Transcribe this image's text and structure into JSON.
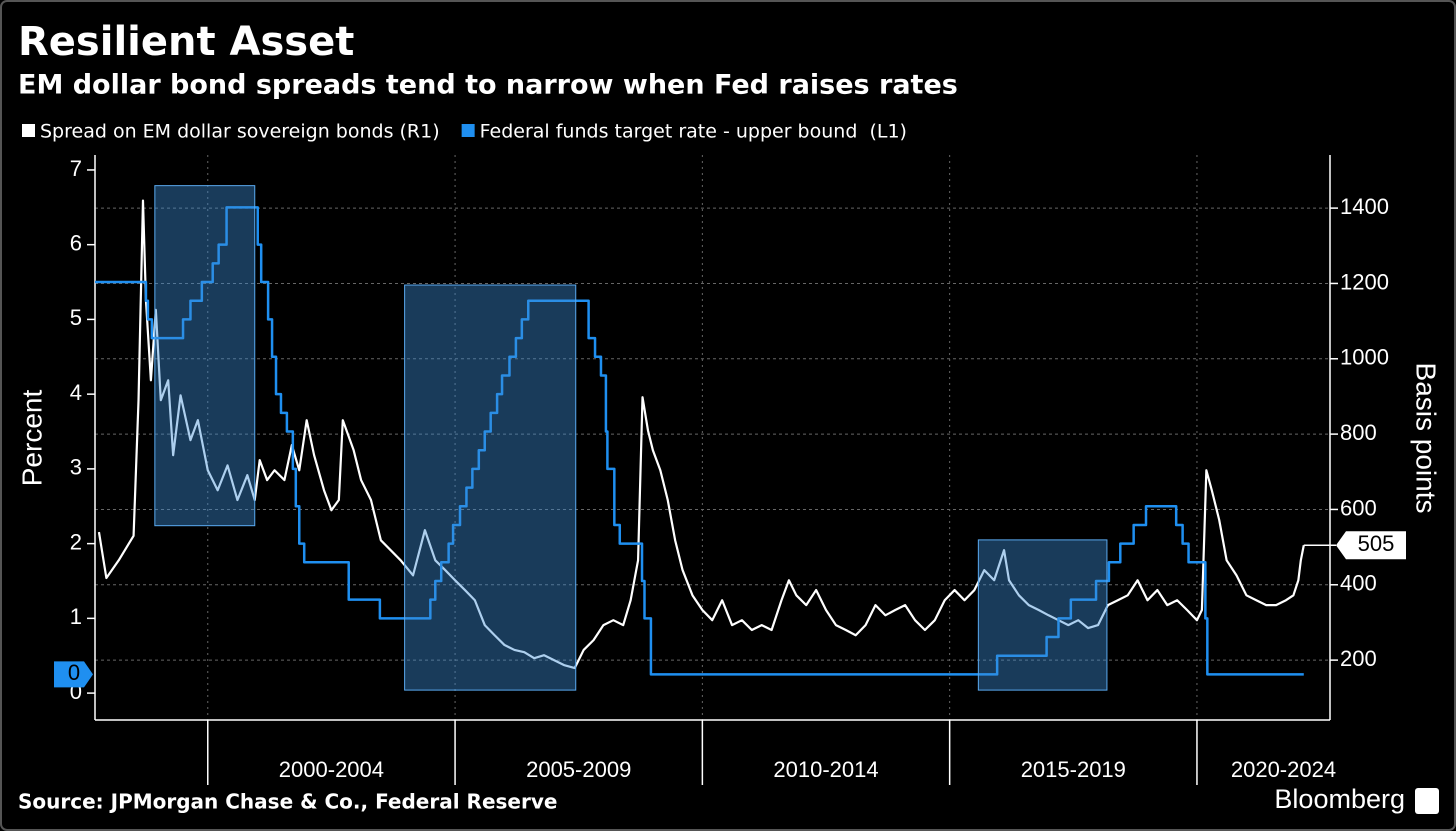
{
  "chart_data": {
    "type": "line",
    "title": "Resilient Asset",
    "subtitle": "EM dollar bond spreads tend to narrow when Fed raises rates",
    "ylabel": "Percent",
    "y2label": "Basis points",
    "source": "Source: JPMorgan Chase & Co., Federal Reserve",
    "brand": "Bloomberg",
    "xlim": [
      1997.72,
      2022.69
    ],
    "xticks": [
      {
        "value": 2000,
        "label": "2000-2004"
      },
      {
        "value": 2005,
        "label": "2005-2009"
      },
      {
        "value": 2010,
        "label": "2010-2014"
      },
      {
        "value": 2015,
        "label": "2015-2019"
      },
      {
        "value": 2020,
        "label": "2020-2024"
      }
    ],
    "ylim": [
      -0.36,
      7.2
    ],
    "yticks": [
      0,
      1,
      2,
      3,
      4,
      5,
      6,
      7
    ],
    "y2lim": [
      41,
      1541
    ],
    "y2ticks": [
      200,
      400,
      600,
      800,
      1000,
      1200,
      1400
    ],
    "grid": true,
    "highlights": [
      {
        "x": [
          1998.93,
          2000.95
        ],
        "y": [
          2.24,
          6.79
        ]
      },
      {
        "x": [
          2003.98,
          2007.44
        ],
        "y": [
          0.04,
          5.46
        ]
      },
      {
        "x": [
          2015.58,
          2018.18
        ],
        "y": [
          0.04,
          2.05
        ]
      }
    ],
    "series": [
      {
        "name": "Spread on EM dollar sovereign bonds (R1)",
        "color": "#ffffff",
        "axis": "y2",
        "x": [
          1997.8,
          1997.95,
          1998.2,
          1998.5,
          1998.6,
          1998.69,
          1998.75,
          1998.85,
          1998.95,
          1999.05,
          1999.2,
          1999.3,
          1999.45,
          1999.65,
          1999.8,
          2000.0,
          2000.2,
          2000.4,
          2000.6,
          2000.8,
          2000.95,
          2001.05,
          2001.2,
          2001.35,
          2001.55,
          2001.7,
          2001.85,
          2002.0,
          2002.15,
          2002.35,
          2002.5,
          2002.65,
          2002.73,
          2002.95,
          2003.1,
          2003.3,
          2003.5,
          2003.9,
          2004.15,
          2004.39,
          2004.6,
          2004.8,
          2005.0,
          2005.2,
          2005.4,
          2005.6,
          2005.8,
          2006.0,
          2006.2,
          2006.4,
          2006.6,
          2006.8,
          2007.0,
          2007.2,
          2007.42,
          2007.6,
          2007.8,
          2008.0,
          2008.2,
          2008.4,
          2008.55,
          2008.7,
          2008.79,
          2008.9,
          2009.0,
          2009.15,
          2009.3,
          2009.45,
          2009.6,
          2009.8,
          2010.0,
          2010.2,
          2010.4,
          2010.6,
          2010.8,
          2011.0,
          2011.2,
          2011.4,
          2011.6,
          2011.75,
          2011.9,
          2012.1,
          2012.3,
          2012.5,
          2012.7,
          2012.9,
          2013.1,
          2013.3,
          2013.5,
          2013.7,
          2013.9,
          2014.1,
          2014.3,
          2014.5,
          2014.7,
          2014.9,
          2015.1,
          2015.3,
          2015.5,
          2015.7,
          2015.9,
          2016.1,
          2016.2,
          2016.4,
          2016.6,
          2016.8,
          2017.0,
          2017.2,
          2017.4,
          2017.6,
          2017.8,
          2018.0,
          2018.2,
          2018.4,
          2018.6,
          2018.8,
          2019.0,
          2019.2,
          2019.4,
          2019.6,
          2019.8,
          2020.0,
          2020.1,
          2020.19,
          2020.3,
          2020.45,
          2020.6,
          2020.8,
          2021.0,
          2021.2,
          2021.4,
          2021.6,
          2021.8,
          2021.95,
          2022.05,
          2022.1,
          2022.16
        ],
        "values": [
          540,
          418,
          465,
          530,
          890,
          1420,
          1155,
          943,
          1130,
          890,
          943,
          744,
          903,
          784,
          837,
          704,
          651,
          717,
          625,
          691,
          625,
          731,
          678,
          704,
          678,
          771,
          704,
          837,
          744,
          651,
          598,
          625,
          837,
          757,
          678,
          625,
          518,
          465,
          425,
          545,
          465,
          439,
          412,
          386,
          359,
          293,
          266,
          240,
          227,
          221,
          205,
          213,
          200,
          187,
          179,
          227,
          253,
          293,
          306,
          293,
          359,
          465,
          898,
          810,
          757,
          704,
          625,
          518,
          439,
          372,
          333,
          306,
          359,
          293,
          306,
          280,
          293,
          280,
          359,
          412,
          372,
          346,
          386,
          333,
          293,
          280,
          266,
          293,
          346,
          319,
          333,
          346,
          306,
          280,
          306,
          359,
          386,
          359,
          386,
          439,
          412,
          492,
          412,
          372,
          346,
          333,
          319,
          306,
          293,
          306,
          285,
          293,
          346,
          359,
          372,
          412,
          359,
          386,
          346,
          359,
          333,
          306,
          333,
          704,
          651,
          572,
          465,
          425,
          372,
          359,
          346,
          346,
          359,
          372,
          412,
          465,
          505
        ]
      },
      {
        "name": "Federal funds target rate - upper bound  (L1)",
        "color": "#1f8ff0",
        "axis": "y",
        "step": true,
        "last_value_label": "0",
        "x": [
          1997.72,
          1998.75,
          1998.79,
          1998.87,
          1999.5,
          1999.65,
          1999.88,
          2000.1,
          2000.22,
          2000.38,
          2001.01,
          2001.08,
          2001.22,
          2001.3,
          2001.38,
          2001.48,
          2001.6,
          2001.72,
          2001.78,
          2001.85,
          2001.95,
          2002.85,
          2003.48,
          2004.5,
          2004.6,
          2004.72,
          2004.87,
          2004.96,
          2005.1,
          2005.23,
          2005.35,
          2005.48,
          2005.6,
          2005.72,
          2005.85,
          2005.95,
          2006.1,
          2006.23,
          2006.35,
          2006.48,
          2007.7,
          2007.83,
          2007.95,
          2008.05,
          2008.08,
          2008.22,
          2008.33,
          2008.78,
          2008.83,
          2008.96,
          2015.96,
          2016.96,
          2017.2,
          2017.45,
          2017.96,
          2018.22,
          2018.45,
          2018.72,
          2018.97,
          2019.58,
          2019.71,
          2019.83,
          2020.17,
          2020.21,
          2022.16
        ],
        "values": [
          5.5,
          5.25,
          5.0,
          4.75,
          5.0,
          5.25,
          5.5,
          5.75,
          6.0,
          6.5,
          6.0,
          5.5,
          5.0,
          4.5,
          4.0,
          3.75,
          3.5,
          3.0,
          2.5,
          2.0,
          1.75,
          1.25,
          1.0,
          1.25,
          1.5,
          1.75,
          2.0,
          2.25,
          2.5,
          2.75,
          3.0,
          3.25,
          3.5,
          3.75,
          4.0,
          4.25,
          4.5,
          4.75,
          5.0,
          5.25,
          4.75,
          4.5,
          4.25,
          3.5,
          3.0,
          2.25,
          2.0,
          1.5,
          1.0,
          0.25,
          0.5,
          0.75,
          1.0,
          1.25,
          1.5,
          1.75,
          2.0,
          2.25,
          2.5,
          2.25,
          2.0,
          1.75,
          1.0,
          0.25,
          0.25
        ]
      }
    ]
  }
}
